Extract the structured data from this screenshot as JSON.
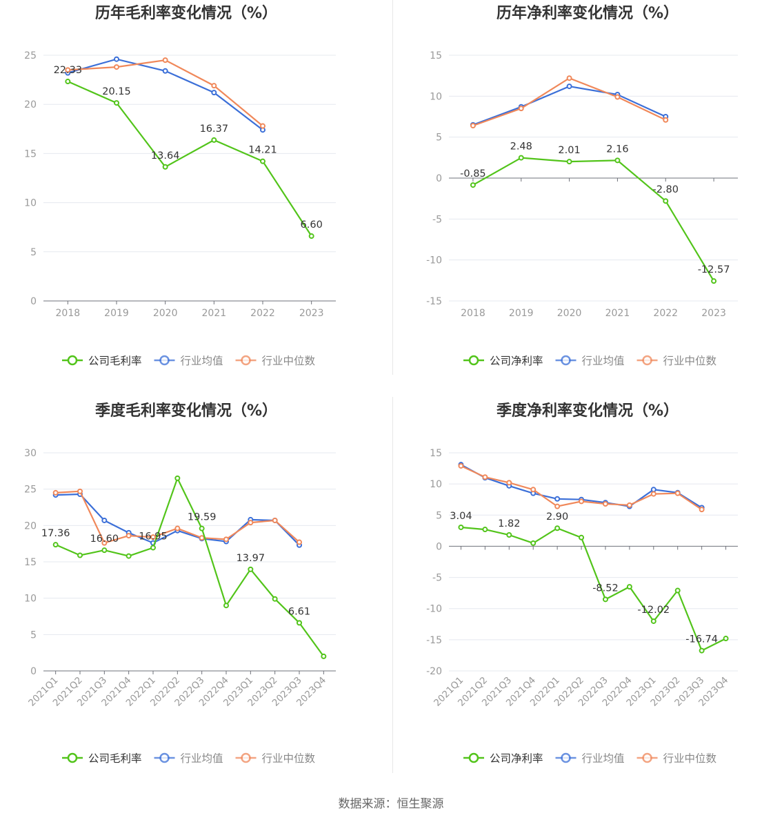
{
  "source_text": "数据来源：恒生聚源",
  "colors": {
    "company": "#52c41a",
    "industry_avg": "#3b6fd8",
    "industry_median": "#f0885a",
    "axis": "#999999",
    "grid": "#e5e8ef"
  },
  "chart_data": [
    {
      "type": "line",
      "title": "历年毛利率变化情况（%）",
      "categories": [
        "2018",
        "2019",
        "2020",
        "2021",
        "2022",
        "2023"
      ],
      "ylim": [
        0,
        25
      ],
      "yticks": [
        0,
        5,
        10,
        15,
        20,
        25
      ],
      "grid": true,
      "legend_position": "bottom",
      "series": [
        {
          "name": "公司毛利率",
          "color": "#52c41a",
          "labels": true,
          "values": [
            22.33,
            20.15,
            13.64,
            16.37,
            14.21,
            6.6
          ]
        },
        {
          "name": "行业均值",
          "color": "#3b6fd8",
          "labels": false,
          "values": [
            23.2,
            24.6,
            23.4,
            21.2,
            17.4,
            null
          ]
        },
        {
          "name": "行业中位数",
          "color": "#f0885a",
          "labels": false,
          "values": [
            23.5,
            23.8,
            24.5,
            21.9,
            17.8,
            null
          ]
        }
      ]
    },
    {
      "type": "line",
      "title": "历年净利率变化情况（%）",
      "categories": [
        "2018",
        "2019",
        "2020",
        "2021",
        "2022",
        "2023"
      ],
      "ylim": [
        -15,
        15
      ],
      "yticks": [
        -15,
        -10,
        -5,
        0,
        5,
        10,
        15
      ],
      "grid": true,
      "legend_position": "bottom",
      "series": [
        {
          "name": "公司净利率",
          "color": "#52c41a",
          "labels": true,
          "values": [
            -0.85,
            2.48,
            2.01,
            2.16,
            -2.8,
            -12.57
          ]
        },
        {
          "name": "行业均值",
          "color": "#3b6fd8",
          "labels": false,
          "values": [
            6.5,
            8.7,
            11.2,
            10.2,
            7.5,
            null
          ]
        },
        {
          "name": "行业中位数",
          "color": "#f0885a",
          "labels": false,
          "values": [
            6.4,
            8.5,
            12.2,
            9.9,
            7.1,
            null
          ]
        }
      ]
    },
    {
      "type": "line",
      "title": "季度毛利率变化情况（%）",
      "categories": [
        "2021Q1",
        "2021Q2",
        "2021Q3",
        "2021Q4",
        "2022Q1",
        "2022Q2",
        "2022Q3",
        "2022Q4",
        "2023Q1",
        "2023Q2",
        "2023Q3",
        "2023Q4"
      ],
      "ylim": [
        0,
        30
      ],
      "yticks": [
        0,
        5,
        10,
        15,
        20,
        25,
        30
      ],
      "grid": true,
      "legend_position": "bottom",
      "series": [
        {
          "name": "公司毛利率",
          "color": "#52c41a",
          "labels": true,
          "values": [
            17.36,
            15.9,
            16.6,
            15.8,
            16.95,
            26.5,
            19.59,
            9.0,
            13.97,
            9.9,
            6.61,
            2.0
          ],
          "labeled_indices": [
            0,
            2,
            4,
            6,
            8,
            10
          ]
        },
        {
          "name": "行业均值",
          "color": "#3b6fd8",
          "labels": false,
          "values": [
            24.2,
            24.3,
            20.7,
            19.0,
            17.6,
            19.3,
            18.2,
            17.8,
            20.8,
            20.7,
            17.3,
            null
          ]
        },
        {
          "name": "行业中位数",
          "color": "#f0885a",
          "labels": false,
          "values": [
            24.5,
            24.7,
            17.6,
            18.6,
            18.4,
            19.6,
            18.3,
            18.1,
            20.4,
            20.7,
            17.7,
            null
          ]
        }
      ]
    },
    {
      "type": "line",
      "title": "季度净利率变化情况（%）",
      "categories": [
        "2021Q1",
        "2021Q2",
        "2021Q3",
        "2021Q4",
        "2022Q1",
        "2022Q2",
        "2022Q3",
        "2022Q4",
        "2023Q1",
        "2023Q2",
        "2023Q3",
        "2023Q4"
      ],
      "ylim": [
        -20,
        15
      ],
      "yticks": [
        -20,
        -15,
        -10,
        -5,
        0,
        5,
        10,
        15
      ],
      "grid": true,
      "legend_position": "bottom",
      "series": [
        {
          "name": "公司净利率",
          "color": "#52c41a",
          "labels": true,
          "values": [
            3.04,
            2.7,
            1.82,
            0.5,
            2.9,
            1.4,
            -8.52,
            -6.5,
            -12.02,
            -7.1,
            -16.74,
            -14.8
          ],
          "labeled_indices": [
            0,
            2,
            4,
            6,
            8,
            10
          ]
        },
        {
          "name": "行业均值",
          "color": "#3b6fd8",
          "labels": false,
          "values": [
            13.1,
            11.0,
            9.7,
            8.5,
            7.6,
            7.5,
            7.0,
            6.4,
            9.1,
            8.6,
            6.2,
            null
          ]
        },
        {
          "name": "行业中位数",
          "color": "#f0885a",
          "labels": false,
          "values": [
            12.9,
            11.1,
            10.2,
            9.1,
            6.4,
            7.2,
            6.8,
            6.6,
            8.4,
            8.5,
            5.9,
            null
          ]
        }
      ]
    }
  ]
}
